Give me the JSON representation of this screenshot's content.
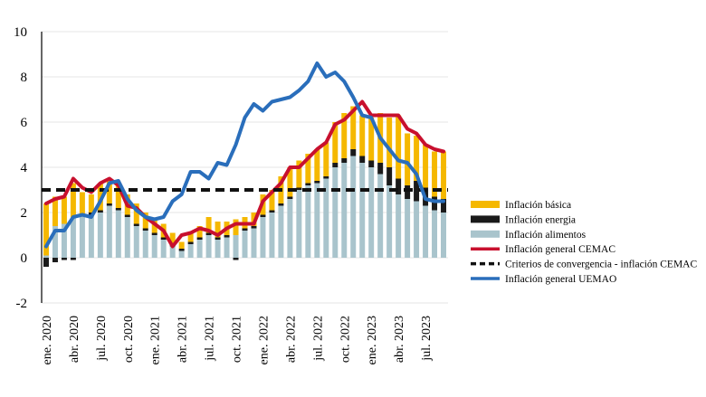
{
  "chart_data": {
    "type": "bar",
    "title": "",
    "xlabel": "",
    "ylabel": "",
    "ylim": [
      -2,
      10
    ],
    "yticks": [
      -2,
      0,
      2,
      4,
      6,
      8,
      10
    ],
    "grid": "horizontal",
    "legend_position": "right",
    "x": [
      "ene. 2020",
      "feb. 2020",
      "mar. 2020",
      "abr. 2020",
      "may. 2020",
      "jun. 2020",
      "jul. 2020",
      "ago. 2020",
      "sep. 2020",
      "oct. 2020",
      "nov. 2020",
      "dic. 2020",
      "ene. 2021",
      "feb. 2021",
      "mar. 2021",
      "abr. 2021",
      "may. 2021",
      "jun. 2021",
      "jul. 2021",
      "ago. 2021",
      "sep. 2021",
      "oct. 2021",
      "nov. 2021",
      "dic. 2021",
      "ene. 2022",
      "feb. 2022",
      "mar. 2022",
      "abr. 2022",
      "may. 2022",
      "jun. 2022",
      "jul. 2022",
      "ago. 2022",
      "sep. 2022",
      "oct. 2022",
      "nov. 2022",
      "dic. 2022",
      "ene. 2023",
      "feb. 2023",
      "mar. 2023",
      "abr. 2023",
      "may. 2023",
      "jun. 2023",
      "jul. 2023",
      "ago. 2023",
      "sep. 2023"
    ],
    "tick_labels": [
      "ene. 2020",
      "abr. 2020",
      "jul. 2020",
      "oct. 2020",
      "ene. 2021",
      "abr. 2021",
      "jul. 2021",
      "oct. 2021",
      "ene. 2022",
      "abr. 2022",
      "jul. 2022",
      "oct. 2022",
      "ene. 2023",
      "abr. 2023",
      "jul. 2023"
    ],
    "series": [
      {
        "name": "Inflación alimentos",
        "kind": "bar",
        "color": "#a9c4cc",
        "values": [
          0.1,
          1.4,
          1.5,
          1.8,
          1.9,
          1.9,
          2.0,
          2.3,
          2.1,
          1.8,
          1.4,
          1.2,
          1.0,
          0.8,
          0.5,
          0.3,
          0.6,
          0.8,
          1.0,
          0.8,
          0.9,
          1.0,
          1.2,
          1.3,
          1.8,
          2.0,
          2.3,
          2.6,
          3.0,
          3.2,
          3.3,
          3.5,
          4.0,
          4.2,
          4.5,
          4.2,
          4.0,
          3.7,
          3.2,
          2.8,
          2.6,
          2.5,
          2.3,
          2.1,
          2.0
        ]
      },
      {
        "name": "Inflación energia",
        "kind": "bar",
        "color": "#1a1a1a",
        "values": [
          -0.4,
          -0.2,
          -0.1,
          -0.1,
          0.0,
          0.1,
          0.1,
          0.1,
          0.1,
          0.1,
          0.1,
          0.1,
          0.1,
          0.1,
          0.1,
          0.1,
          0.1,
          0.1,
          0.1,
          0.1,
          0.1,
          -0.1,
          0.1,
          0.1,
          0.1,
          0.1,
          0.1,
          0.1,
          0.1,
          0.1,
          0.1,
          0.1,
          0.2,
          0.2,
          0.3,
          0.3,
          0.3,
          0.5,
          0.8,
          0.7,
          0.6,
          0.9,
          0.8,
          0.6,
          0.6
        ]
      },
      {
        "name": "Inflación básica",
        "kind": "bar",
        "color": "#f5b800",
        "values": [
          2.3,
          1.3,
          1.2,
          1.5,
          1.0,
          0.8,
          1.2,
          1.0,
          1.1,
          0.9,
          0.9,
          0.7,
          0.6,
          0.6,
          0.5,
          0.3,
          0.4,
          0.5,
          0.7,
          0.7,
          0.6,
          0.7,
          0.5,
          0.6,
          0.9,
          0.9,
          1.2,
          1.3,
          1.2,
          1.3,
          1.4,
          1.5,
          1.8,
          2.0,
          1.9,
          1.8,
          1.9,
          2.2,
          2.2,
          2.8,
          2.3,
          2.0,
          1.9,
          2.0,
          2.1
        ]
      },
      {
        "name": "Inflación general CEMAC",
        "kind": "line",
        "color": "#c8102e",
        "values": [
          2.4,
          2.6,
          2.7,
          3.5,
          3.1,
          2.9,
          3.3,
          3.5,
          3.2,
          2.3,
          2.2,
          1.8,
          1.5,
          1.2,
          0.5,
          1.0,
          1.1,
          1.3,
          1.2,
          1.0,
          1.3,
          1.5,
          1.5,
          1.5,
          2.5,
          2.9,
          3.3,
          4.0,
          4.0,
          4.4,
          4.8,
          5.1,
          5.9,
          6.1,
          6.5,
          6.9,
          6.3,
          6.3,
          6.3,
          6.3,
          5.7,
          5.5,
          5.0,
          4.8,
          4.7
        ]
      },
      {
        "name": "Criterios de convergencia - inflación CEMAC",
        "kind": "dashed",
        "color": "#111111",
        "values": [
          3,
          3,
          3,
          3,
          3,
          3,
          3,
          3,
          3,
          3,
          3,
          3,
          3,
          3,
          3,
          3,
          3,
          3,
          3,
          3,
          3,
          3,
          3,
          3,
          3,
          3,
          3,
          3,
          3,
          3,
          3,
          3,
          3,
          3,
          3,
          3,
          3,
          3,
          3,
          3,
          3,
          3,
          3,
          3,
          3
        ]
      },
      {
        "name": "Inflación general UEMAO",
        "kind": "line",
        "color": "#2a6ebb",
        "values": [
          0.5,
          1.2,
          1.2,
          1.8,
          1.9,
          1.8,
          2.5,
          3.3,
          3.4,
          2.6,
          2.1,
          1.8,
          1.7,
          1.8,
          2.5,
          2.8,
          3.8,
          3.8,
          3.5,
          4.2,
          4.1,
          5.0,
          6.2,
          6.8,
          6.5,
          6.9,
          7.0,
          7.1,
          7.4,
          7.8,
          8.6,
          8.0,
          8.2,
          7.8,
          7.1,
          6.3,
          6.2,
          5.3,
          4.8,
          4.3,
          4.2,
          3.7,
          2.6,
          2.5,
          2.5
        ]
      }
    ]
  }
}
